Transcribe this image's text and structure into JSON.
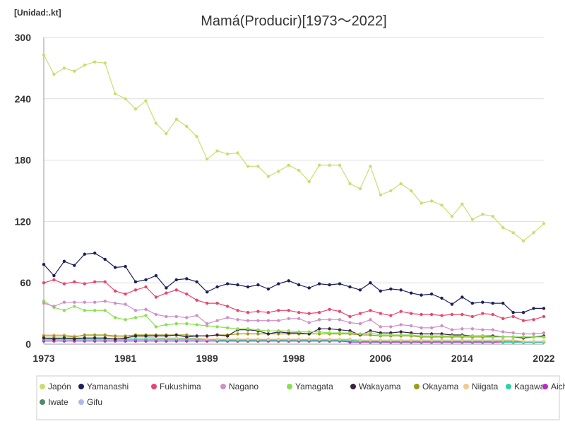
{
  "chart_data": {
    "type": "line",
    "unit_label": "[Unidad:.kt]",
    "title": "Mamá(Producir)[1973～2022]",
    "x_tick_labels": [
      "1973",
      "1981",
      "1989",
      "1998",
      "2006",
      "2014",
      "2022"
    ],
    "x_tick_years": [
      1973,
      1981,
      1989,
      1997.5,
      2006,
      2014,
      2022
    ],
    "y_tick_labels": [
      "0",
      "60",
      "120",
      "180",
      "240",
      "300"
    ],
    "ylim": [
      0,
      300
    ],
    "xlim": [
      1973,
      2022
    ],
    "grid": "horizontal",
    "legend_position": "bottom",
    "x": [
      1973,
      1974,
      1975,
      1976,
      1977,
      1978,
      1979,
      1980,
      1981,
      1982,
      1983,
      1984,
      1985,
      1986,
      1987,
      1988,
      1989,
      1990,
      1991,
      1992,
      1993,
      1994,
      1995,
      1996,
      1997,
      1998,
      1999,
      2000,
      2001,
      2002,
      2003,
      2004,
      2005,
      2006,
      2007,
      2008,
      2009,
      2010,
      2011,
      2012,
      2013,
      2014,
      2015,
      2016,
      2017,
      2018,
      2019,
      2020,
      2021,
      2022
    ],
    "series": [
      {
        "name": "Japón",
        "color": "#c6e070",
        "values": [
          283,
          264,
          270,
          267,
          273,
          276,
          275,
          245,
          240,
          230,
          238,
          216,
          206,
          220,
          213,
          203,
          181,
          189,
          186,
          187,
          174,
          174,
          164,
          169,
          175,
          170,
          159,
          175,
          175,
          175,
          157,
          152,
          174,
          146,
          150,
          157,
          150,
          138,
          140,
          136,
          125,
          137,
          122,
          127,
          125,
          114,
          109,
          101,
          109,
          118
        ]
      },
      {
        "name": "Yamanashi",
        "color": "#1c1f5c",
        "values": [
          78,
          67,
          81,
          77,
          88,
          89,
          83,
          75,
          76,
          61,
          63,
          67,
          55,
          63,
          64,
          61,
          51,
          56,
          59,
          58,
          56,
          58,
          54,
          59,
          62,
          58,
          55,
          59,
          58,
          59,
          56,
          53,
          60,
          52,
          54,
          53,
          50,
          48,
          49,
          45,
          39,
          46,
          40,
          41,
          40,
          40,
          31,
          31,
          35,
          35
        ]
      },
      {
        "name": "Fukushima",
        "color": "#e8466e",
        "values": [
          60,
          63,
          59,
          61,
          59,
          61,
          61,
          52,
          49,
          53,
          56,
          46,
          50,
          53,
          49,
          43,
          40,
          40,
          37,
          33,
          31,
          32,
          31,
          33,
          33,
          31,
          30,
          31,
          34,
          32,
          27,
          30,
          33,
          30,
          28,
          32,
          30,
          29,
          29,
          28,
          29,
          29,
          27,
          30,
          29,
          25,
          27,
          23,
          24,
          27
        ]
      },
      {
        "name": "Nagano",
        "color": "#d08fc8",
        "values": [
          40,
          37,
          41,
          41,
          41,
          41,
          42,
          40,
          39,
          33,
          34,
          29,
          27,
          27,
          26,
          28,
          20,
          23,
          26,
          24,
          23,
          23,
          23,
          23,
          25,
          25,
          21,
          24,
          24,
          24,
          21,
          20,
          24,
          17,
          17,
          19,
          18,
          16,
          16,
          18,
          14,
          15,
          15,
          14,
          14,
          12,
          11,
          10,
          10,
          11
        ]
      },
      {
        "name": "Yamagata",
        "color": "#88e050",
        "values": [
          42,
          36,
          33,
          37,
          33,
          33,
          33,
          26,
          24,
          26,
          28,
          17,
          19,
          20,
          20,
          19,
          18,
          17,
          16,
          15,
          15,
          14,
          13,
          13,
          13,
          12,
          12,
          12,
          11,
          11,
          11,
          10,
          11,
          9,
          9,
          9,
          9,
          8,
          8,
          8,
          8,
          8,
          8,
          8,
          7,
          7,
          7,
          7,
          7,
          7
        ]
      },
      {
        "name": "Wakayama",
        "color": "#3a2340",
        "values": [
          6,
          5,
          6,
          5,
          6,
          6,
          6,
          5,
          6,
          8,
          8,
          8,
          8,
          9,
          7,
          8,
          8,
          9,
          8,
          14,
          14,
          13,
          10,
          12,
          11,
          11,
          10,
          15,
          15,
          14,
          13,
          9,
          13,
          11,
          11,
          12,
          11,
          10,
          10,
          10,
          9,
          9,
          8,
          8,
          8,
          7,
          7,
          6,
          7,
          8
        ]
      },
      {
        "name": "Okayama",
        "color": "#9c9a1c",
        "values": [
          8,
          8,
          8,
          7,
          9,
          9,
          9,
          8,
          8,
          9,
          9,
          9,
          9,
          9,
          9,
          8,
          8,
          9,
          9,
          10,
          10,
          10,
          10,
          10,
          10,
          10,
          10,
          10,
          10,
          10,
          10,
          9,
          9,
          8,
          8,
          8,
          8,
          7,
          7,
          7,
          7,
          7,
          7,
          7,
          7,
          7,
          7,
          7,
          7,
          7
        ]
      },
      {
        "name": "Niigata",
        "color": "#f0c890",
        "values": [
          9,
          9,
          9,
          8,
          8,
          8,
          8,
          7,
          7,
          7,
          7,
          6,
          6,
          6,
          6,
          6,
          5,
          5,
          5,
          5,
          5,
          5,
          5,
          5,
          5,
          5,
          5,
          5,
          5,
          5,
          5,
          4,
          4,
          4,
          4,
          4,
          4,
          4,
          4,
          4,
          4,
          4,
          4,
          4,
          4,
          4,
          4,
          3,
          3,
          3
        ]
      },
      {
        "name": "Kagawa",
        "color": "#2ad6a0",
        "values": [
          5,
          5,
          5,
          5,
          5,
          5,
          5,
          5,
          5,
          5,
          5,
          5,
          5,
          5,
          5,
          5,
          5,
          4,
          4,
          4,
          4,
          4,
          4,
          4,
          4,
          4,
          4,
          4,
          4,
          4,
          4,
          3,
          3,
          3,
          3,
          3,
          3,
          3,
          3,
          3,
          3,
          3,
          3,
          3,
          3,
          2,
          2,
          2,
          2,
          2
        ]
      },
      {
        "name": "Aichi",
        "color": "#b52ec4",
        "values": [
          3,
          3,
          3,
          3,
          3,
          3,
          3,
          3,
          3,
          3,
          3,
          3,
          3,
          3,
          3,
          3,
          3,
          3,
          3,
          3,
          3,
          3,
          3,
          3,
          3,
          3,
          3,
          3,
          3,
          3,
          2,
          2,
          2,
          2,
          2,
          2,
          2,
          2,
          2,
          2,
          2,
          2,
          2,
          2,
          2,
          2,
          2,
          2,
          2,
          2
        ]
      },
      {
        "name": "Iwate",
        "color": "#4f8a6a",
        "values": [
          6,
          6,
          6,
          6,
          6,
          6,
          6,
          5,
          5,
          5,
          5,
          5,
          5,
          5,
          5,
          5,
          5,
          4,
          4,
          4,
          4,
          4,
          4,
          4,
          4,
          4,
          4,
          4,
          4,
          4,
          4,
          3,
          3,
          3,
          3,
          3,
          3,
          3,
          3,
          3,
          3,
          3,
          3,
          3,
          3,
          3,
          3,
          2,
          2,
          2
        ]
      },
      {
        "name": "Gifu",
        "color": "#b0b8ee",
        "values": [
          4,
          4,
          4,
          4,
          4,
          4,
          4,
          4,
          4,
          4,
          4,
          4,
          4,
          4,
          4,
          4,
          4,
          3,
          3,
          3,
          3,
          3,
          3,
          3,
          3,
          3,
          3,
          3,
          3,
          3,
          3,
          3,
          3,
          2,
          2,
          2,
          2,
          2,
          2,
          2,
          2,
          2,
          2,
          2,
          2,
          2,
          2,
          2,
          2,
          2
        ]
      }
    ]
  }
}
